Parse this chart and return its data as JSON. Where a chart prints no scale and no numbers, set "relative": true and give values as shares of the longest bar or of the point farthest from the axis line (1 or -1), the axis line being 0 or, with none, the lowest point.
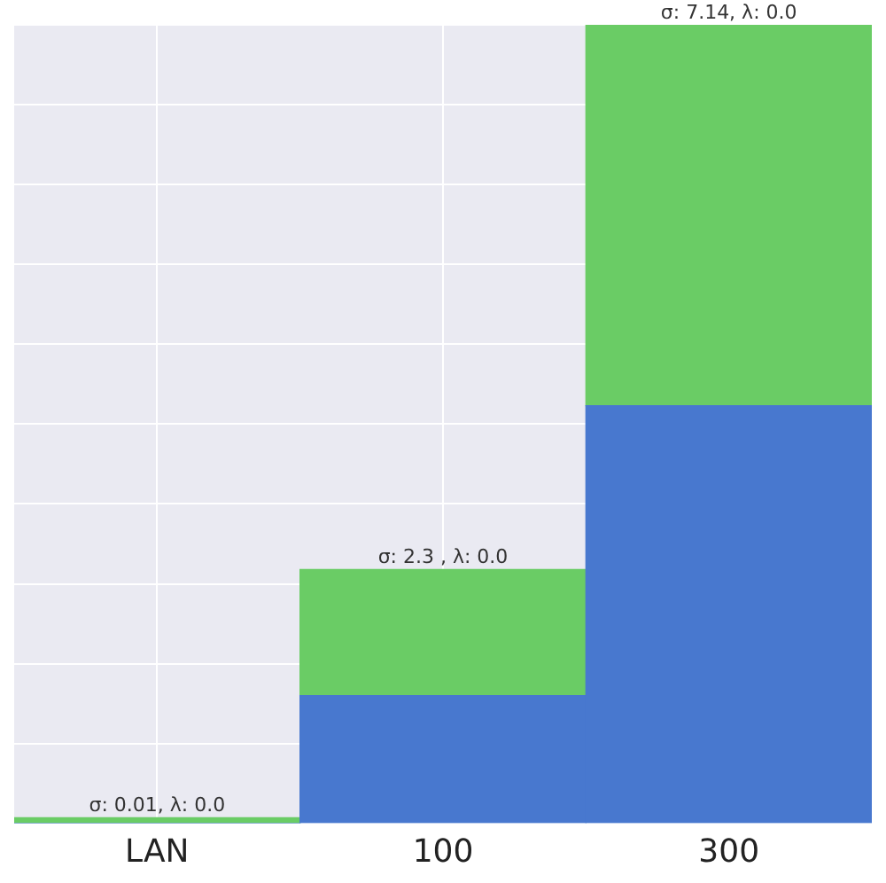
{
  "chart_data": {
    "type": "bar",
    "stacked": true,
    "relative": true,
    "grid": true,
    "legend": false,
    "categories": [
      "LAN",
      "100",
      "300"
    ],
    "series": [
      {
        "color": "#4878cf",
        "values": [
          0,
          0.16,
          0.523
        ]
      },
      {
        "color": "#6acc65",
        "values": [
          0.007,
          0.158,
          0.477
        ]
      }
    ],
    "totals": [
      "σ: 0.01, λ: 0.0",
      "σ: 2.3 , λ: 0.0",
      "σ: 7.14, λ: 0.0"
    ]
  }
}
